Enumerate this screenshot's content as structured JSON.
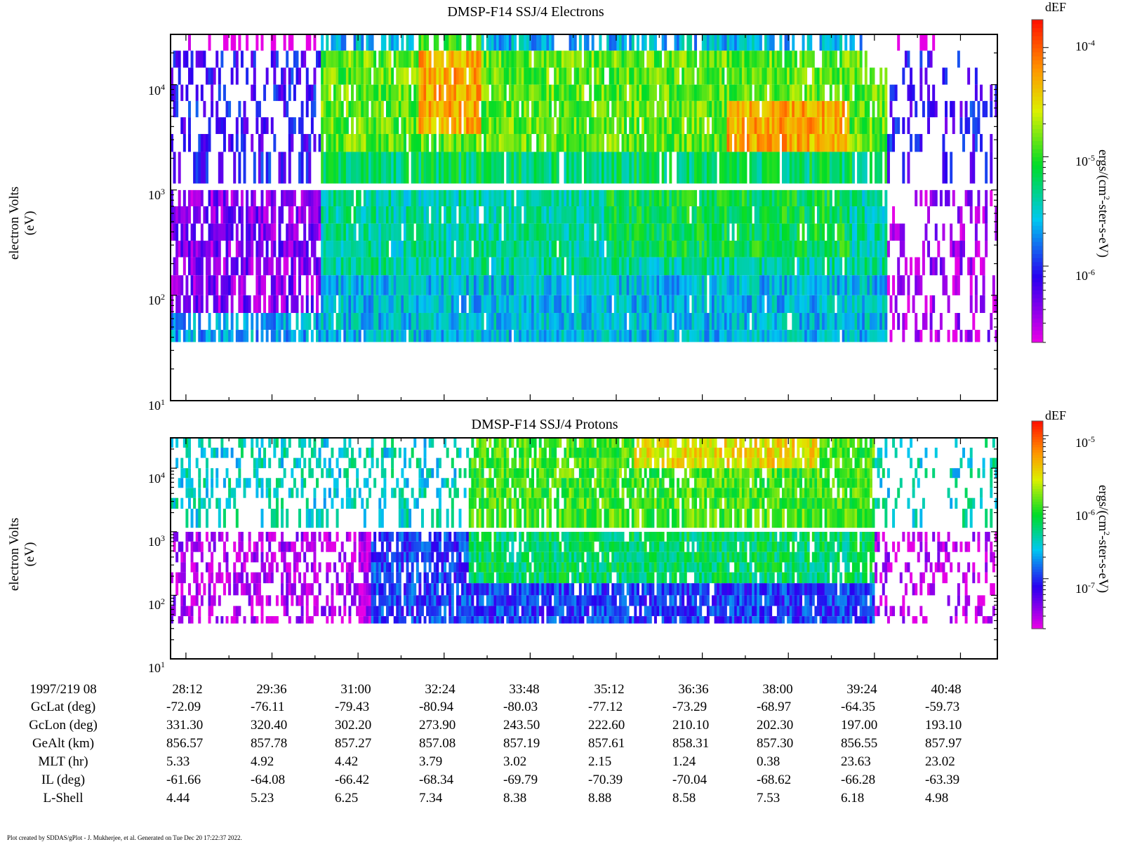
{
  "chart_data": [
    {
      "type": "heatmap",
      "title": "DMSP-F14 SSJ/4 Electrons",
      "ylabel_line1": "electron Volts",
      "ylabel_line2": "(eV)",
      "yscale": "log",
      "ylim": [
        10,
        30000
      ],
      "y_ticks": [
        {
          "base": "10",
          "exp": "1"
        },
        {
          "base": "10",
          "exp": "2"
        },
        {
          "base": "10",
          "exp": "3"
        },
        {
          "base": "10",
          "exp": "4"
        }
      ],
      "colorbar": {
        "title": "dEF",
        "label_pre": "ergs/(cm",
        "label_sup": "2",
        "label_post": "-ster-s-eV)",
        "scale": "log",
        "range": [
          2e-07,
          0.00018
        ],
        "ticks": [
          {
            "base": "10",
            "exp": "-6"
          },
          {
            "base": "10",
            "exp": "-5"
          },
          {
            "base": "10",
            "exp": "-4"
          }
        ]
      },
      "channel_gap_eV": [
        1000,
        1150
      ]
    },
    {
      "type": "heatmap",
      "title": "DMSP-F14 SSJ/4 Protons",
      "ylabel_line1": "electron Volts",
      "ylabel_line2": "(eV)",
      "yscale": "log",
      "ylim": [
        10,
        30000
      ],
      "y_ticks": [
        {
          "base": "10",
          "exp": "1"
        },
        {
          "base": "10",
          "exp": "2"
        },
        {
          "base": "10",
          "exp": "3"
        },
        {
          "base": "10",
          "exp": "4"
        }
      ],
      "colorbar": {
        "title": "dEF",
        "label_pre": "ergs/(cm",
        "label_sup": "2",
        "label_post": "-ster-s-eV)",
        "scale": "log",
        "range": [
          2e-08,
          1.6e-05
        ],
        "ticks": [
          {
            "base": "10",
            "exp": "-7"
          },
          {
            "base": "10",
            "exp": "-6"
          },
          {
            "base": "10",
            "exp": "-5"
          }
        ]
      },
      "channel_gap_eV": [
        1000,
        1150
      ]
    }
  ],
  "time_axis": {
    "ticks": [
      "28:12",
      "29:36",
      "31:00",
      "32:24",
      "33:48",
      "35:12",
      "36:36",
      "38:00",
      "39:24",
      "40:48"
    ],
    "range_minutes": [
      27.95,
      41.4
    ]
  },
  "ephemeris": {
    "header": "1997/219 08",
    "rows": [
      {
        "label": "GcLat (deg)",
        "values": [
          "-72.09",
          "-76.11",
          "-79.43",
          "-80.94",
          "-80.03",
          "-77.12",
          "-73.29",
          "-68.97",
          "-64.35",
          "-59.73"
        ]
      },
      {
        "label": "GcLon (deg)",
        "values": [
          "331.30",
          "320.40",
          "302.20",
          "273.90",
          "243.50",
          "222.60",
          "210.10",
          "202.30",
          "197.00",
          "193.10"
        ]
      },
      {
        "label": "GeAlt (km)",
        "values": [
          "856.57",
          "857.78",
          "857.27",
          "857.08",
          "857.19",
          "857.61",
          "858.31",
          "857.30",
          "856.55",
          "857.97"
        ]
      },
      {
        "label": "MLT (hr)",
        "values": [
          "5.33",
          "4.92",
          "4.42",
          "3.79",
          "3.02",
          "2.15",
          "1.24",
          "0.38",
          "23.63",
          "23.02"
        ]
      },
      {
        "label": "IL (deg)",
        "values": [
          "-61.66",
          "-64.08",
          "-66.42",
          "-68.34",
          "-69.79",
          "-70.39",
          "-70.04",
          "-68.62",
          "-66.28",
          "-63.39"
        ]
      },
      {
        "label": "L-Shell",
        "values": [
          "4.44",
          "5.23",
          "6.25",
          "7.34",
          "8.38",
          "8.88",
          "8.58",
          "7.53",
          "6.18",
          "4.98"
        ]
      }
    ]
  },
  "footer": "Plot created by SDDAS/gPlot - J. Mukherjee, et al.  Generated on Tue Dec 20 17:22:37 2022."
}
